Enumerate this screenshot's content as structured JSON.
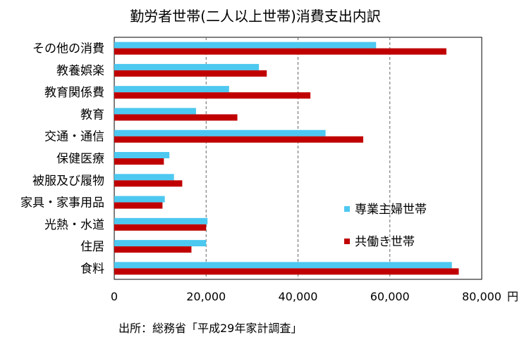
{
  "chart_data": {
    "type": "bar",
    "orientation": "horizontal",
    "title": "勤労者世帯(二人以上世帯)消費支出内訳",
    "categories": [
      "その他の消費",
      "教養娯楽",
      "教育関係費",
      "教育",
      "交通・通信",
      "保健医療",
      "被服及び履物",
      "家具・家事用品",
      "光熱・水道",
      "住居",
      "食料"
    ],
    "series": [
      {
        "name": "専業主婦世帯",
        "color": "#4dc8f0",
        "values": [
          57000,
          31500,
          25000,
          17800,
          46000,
          12000,
          13000,
          11000,
          20300,
          20000,
          73500
        ]
      },
      {
        "name": "共働き世帯",
        "color": "#c00000",
        "values": [
          72300,
          33200,
          42700,
          26800,
          54200,
          10800,
          14800,
          10500,
          20000,
          16800,
          75000
        ]
      }
    ],
    "xlim": [
      0,
      80000
    ],
    "x_ticks": [
      "0",
      "20,000",
      "40,000",
      "60,000",
      "80,000"
    ],
    "x_unit": "円",
    "grid": "vertical-dashed",
    "legend_position": "right",
    "source": "出所：総務省「平成29年家計調査」"
  }
}
